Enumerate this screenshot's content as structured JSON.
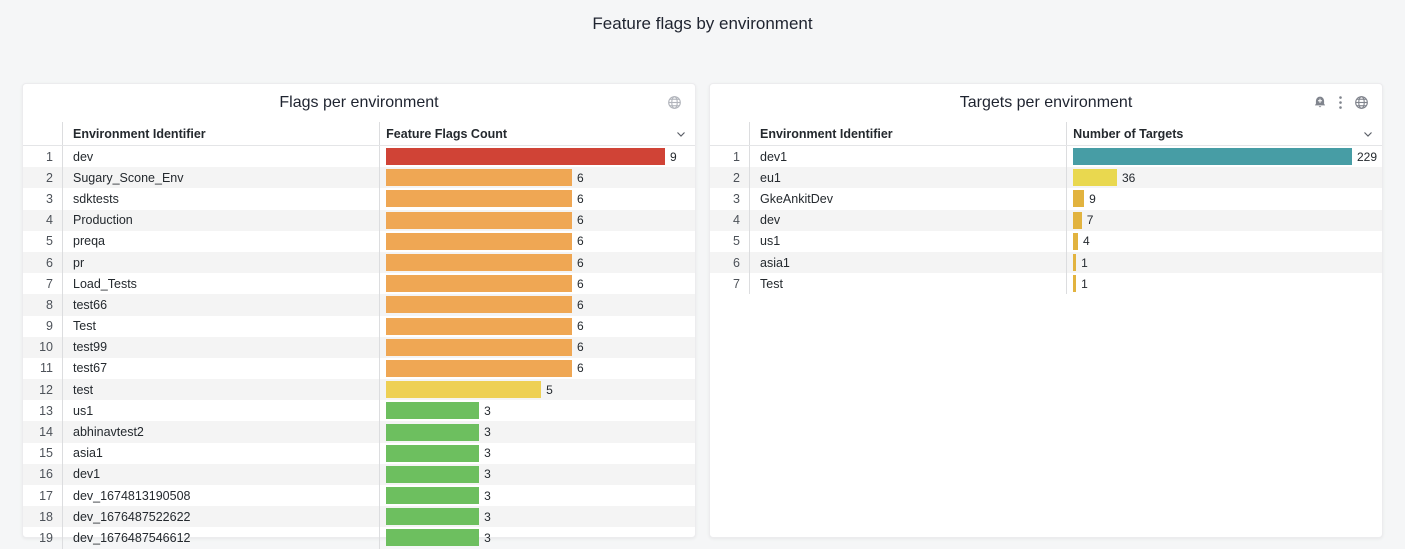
{
  "page": {
    "title": "Feature flags by environment",
    "background_color": "#f5f6f7"
  },
  "chart_data": [
    {
      "type": "bar",
      "orientation": "horizontal",
      "title": "Flags per environment",
      "categories": [
        "dev",
        "Sugary_Scone_Env",
        "sdktests",
        "Production",
        "preqa",
        "pr",
        "Load_Tests",
        "test66",
        "Test",
        "test99",
        "test67",
        "test",
        "us1",
        "abhinavtest2",
        "asia1",
        "dev1",
        "dev_1674813190508",
        "dev_1676487522622",
        "dev_1676487546612"
      ],
      "values": [
        9,
        6,
        6,
        6,
        6,
        6,
        6,
        6,
        6,
        6,
        6,
        5,
        3,
        3,
        3,
        3,
        3,
        3,
        3
      ],
      "xlabel": "Feature Flags Count",
      "ylabel": "Environment Identifier",
      "xlim": [
        0,
        9
      ],
      "legend": false,
      "grid": false
    },
    {
      "type": "bar",
      "orientation": "horizontal",
      "title": "Targets per environment",
      "categories": [
        "dev1",
        "eu1",
        "GkeAnkitDev",
        "dev",
        "us1",
        "asia1",
        "Test"
      ],
      "values": [
        229,
        36,
        9,
        7,
        4,
        1,
        1
      ],
      "xlabel": "Number of Targets",
      "ylabel": "Environment Identifier",
      "xlim": [
        0,
        229
      ],
      "legend": false,
      "grid": false
    }
  ],
  "panels": [
    {
      "title": "Flags per environment",
      "header_icons": [
        "globe-icon"
      ],
      "columns": {
        "identifier": "Environment Identifier",
        "value": "Feature Flags Count"
      },
      "sort_icon": "chevron-down-icon",
      "max_value": 9,
      "rows": [
        {
          "index": "1",
          "identifier": "dev",
          "value": "9",
          "color": "#d04336"
        },
        {
          "index": "2",
          "identifier": "Sugary_Scone_Env",
          "value": "6",
          "color": "#efa754"
        },
        {
          "index": "3",
          "identifier": "sdktests",
          "value": "6",
          "color": "#efa754"
        },
        {
          "index": "4",
          "identifier": "Production",
          "value": "6",
          "color": "#efa754"
        },
        {
          "index": "5",
          "identifier": "preqa",
          "value": "6",
          "color": "#efa754"
        },
        {
          "index": "6",
          "identifier": "pr",
          "value": "6",
          "color": "#efa754"
        },
        {
          "index": "7",
          "identifier": "Load_Tests",
          "value": "6",
          "color": "#efa754"
        },
        {
          "index": "8",
          "identifier": "test66",
          "value": "6",
          "color": "#efa754"
        },
        {
          "index": "9",
          "identifier": "Test",
          "value": "6",
          "color": "#efa754"
        },
        {
          "index": "10",
          "identifier": "test99",
          "value": "6",
          "color": "#efa754"
        },
        {
          "index": "11",
          "identifier": "test67",
          "value": "6",
          "color": "#efa754"
        },
        {
          "index": "12",
          "identifier": "test",
          "value": "5",
          "color": "#eed054"
        },
        {
          "index": "13",
          "identifier": "us1",
          "value": "3",
          "color": "#6dbf5f"
        },
        {
          "index": "14",
          "identifier": "abhinavtest2",
          "value": "3",
          "color": "#6dbf5f"
        },
        {
          "index": "15",
          "identifier": "asia1",
          "value": "3",
          "color": "#6dbf5f"
        },
        {
          "index": "16",
          "identifier": "dev1",
          "value": "3",
          "color": "#6dbf5f"
        },
        {
          "index": "17",
          "identifier": "dev_1674813190508",
          "value": "3",
          "color": "#6dbf5f"
        },
        {
          "index": "18",
          "identifier": "dev_1676487522622",
          "value": "3",
          "color": "#6dbf5f"
        },
        {
          "index": "19",
          "identifier": "dev_1676487546612",
          "value": "3",
          "color": "#6dbf5f"
        }
      ]
    },
    {
      "title": "Targets per environment",
      "header_icons": [
        "alert-bell-icon",
        "kebab-menu-icon",
        "globe-icon"
      ],
      "columns": {
        "identifier": "Environment Identifier",
        "value": "Number of Targets"
      },
      "sort_icon": "chevron-down-icon",
      "max_value": 229,
      "rows": [
        {
          "index": "1",
          "identifier": "dev1",
          "value": "229",
          "color": "#479da5"
        },
        {
          "index": "2",
          "identifier": "eu1",
          "value": "36",
          "color": "#e9d84f"
        },
        {
          "index": "3",
          "identifier": "GkeAnkitDev",
          "value": "9",
          "color": "#e2b33f"
        },
        {
          "index": "4",
          "identifier": "dev",
          "value": "7",
          "color": "#e2b33f"
        },
        {
          "index": "5",
          "identifier": "us1",
          "value": "4",
          "color": "#e2b33f"
        },
        {
          "index": "6",
          "identifier": "asia1",
          "value": "1",
          "color": "#e2b33f"
        },
        {
          "index": "7",
          "identifier": "Test",
          "value": "1",
          "color": "#e2b33f"
        }
      ]
    }
  ]
}
